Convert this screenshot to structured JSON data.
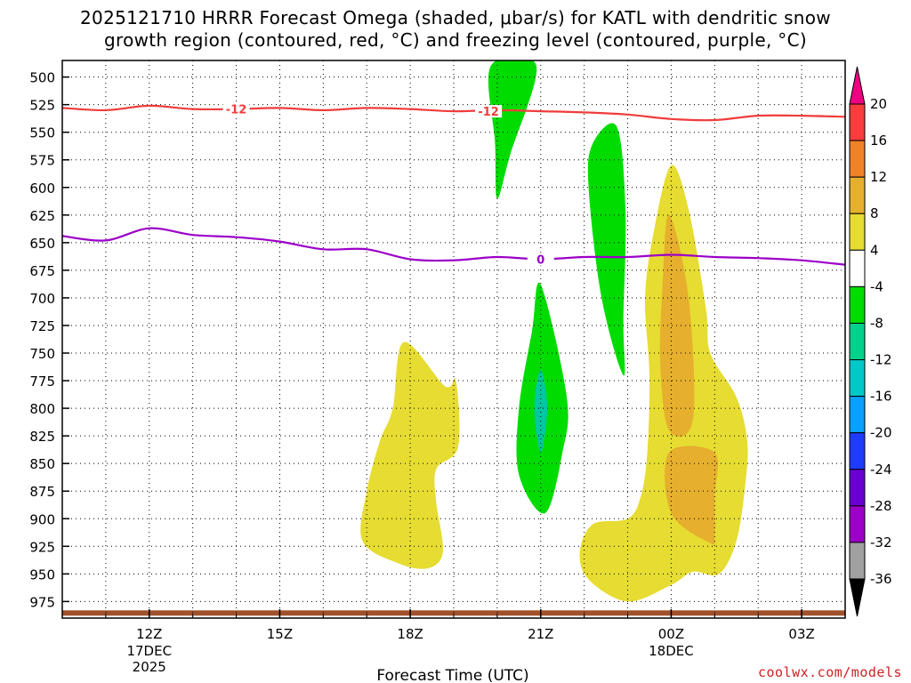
{
  "chart_data": {
    "type": "heatmap",
    "title_line1": "2025121710 HRRR Forecast Omega (shaded, μbar/s) for KATL with dendritic snow",
    "title_line2": "growth region (contoured, red, °C) and freezing level (contoured, purple, °C)",
    "xlabel": "Forecast Time (UTC)",
    "x_ticks": [
      "12Z",
      "15Z",
      "18Z",
      "21Z",
      "00Z",
      "03Z"
    ],
    "x_tick_hours": [
      12,
      15,
      18,
      21,
      24,
      27
    ],
    "x_sublabels": [
      {
        "at": "12Z",
        "lines": [
          "17DEC",
          "2025"
        ]
      },
      {
        "at": "00Z",
        "lines": [
          "18DEC"
        ]
      }
    ],
    "xlim_hours": [
      10,
      28
    ],
    "y_ticks": [
      500,
      525,
      550,
      575,
      600,
      625,
      650,
      675,
      700,
      725,
      750,
      775,
      800,
      825,
      850,
      875,
      900,
      925,
      950,
      975
    ],
    "ylim_mb": [
      485,
      990
    ],
    "grid": true,
    "colorbar": {
      "levels": [
        -36,
        -32,
        -28,
        -24,
        -20,
        -16,
        -12,
        -8,
        -4,
        4,
        8,
        12,
        16,
        20
      ],
      "colors": [
        "#000000",
        "#a0a0a0",
        "#9c00c8",
        "#6a00d2",
        "#1e3cff",
        "#0aa0ff",
        "#00c8c8",
        "#00d28c",
        "#00dc00",
        "#ffffff",
        "#e6dc32",
        "#e6af2d",
        "#f08228",
        "#fa3c3c",
        "#f00082"
      ]
    },
    "dgz_contour": {
      "label": "-12",
      "color": "#f03c3c",
      "points": [
        [
          10.0,
          528
        ],
        [
          11.0,
          530
        ],
        [
          12.0,
          526
        ],
        [
          13.0,
          529
        ],
        [
          14.0,
          529
        ],
        [
          15.0,
          528
        ],
        [
          16.0,
          530
        ],
        [
          17.0,
          528
        ],
        [
          18.0,
          529
        ],
        [
          19.0,
          531
        ],
        [
          20.0,
          530
        ],
        [
          21.0,
          531
        ],
        [
          22.0,
          532
        ],
        [
          23.0,
          534
        ],
        [
          24.0,
          538
        ],
        [
          25.0,
          539
        ],
        [
          26.0,
          535
        ],
        [
          27.0,
          535
        ],
        [
          28.0,
          536
        ]
      ]
    },
    "freezing_contour": {
      "label": "0",
      "color": "#9c00c8",
      "points": [
        [
          10.0,
          644
        ],
        [
          11.0,
          648
        ],
        [
          12.0,
          637
        ],
        [
          13.0,
          643
        ],
        [
          14.0,
          645
        ],
        [
          15.0,
          649
        ],
        [
          16.0,
          656
        ],
        [
          17.0,
          656
        ],
        [
          18.0,
          665
        ],
        [
          19.0,
          666
        ],
        [
          20.0,
          663
        ],
        [
          21.0,
          665
        ],
        [
          22.0,
          663
        ],
        [
          23.0,
          663
        ],
        [
          24.0,
          661
        ],
        [
          25.0,
          663
        ],
        [
          26.0,
          664
        ],
        [
          27.0,
          666
        ],
        [
          28.0,
          670
        ]
      ]
    },
    "shaded_regions": [
      {
        "category": "-8 to -4",
        "color": "#00dc00",
        "points": [
          [
            19.85,
            490
          ],
          [
            20.9,
            490
          ],
          [
            20.3,
            570
          ],
          [
            20.0,
            610
          ],
          [
            19.95,
            560
          ]
        ]
      },
      {
        "category": "-8 to -4",
        "color": "#00dc00",
        "points": [
          [
            21.0,
            688
          ],
          [
            21.6,
            790
          ],
          [
            21.5,
            840
          ],
          [
            21.1,
            895
          ],
          [
            20.5,
            860
          ],
          [
            20.5,
            800
          ],
          [
            20.8,
            730
          ]
        ]
      },
      {
        "category": "-12 to -8",
        "color": "#00c8a0",
        "points": [
          [
            21.0,
            765
          ],
          [
            21.15,
            800
          ],
          [
            21.0,
            840
          ],
          [
            20.85,
            800
          ]
        ]
      },
      {
        "category": "-8 to -4",
        "color": "#00dc00",
        "points": [
          [
            22.2,
            560
          ],
          [
            22.75,
            545
          ],
          [
            22.95,
            620
          ],
          [
            22.9,
            720
          ],
          [
            22.9,
            770
          ],
          [
            22.4,
            700
          ],
          [
            22.1,
            600
          ]
        ]
      },
      {
        "category": "4 to 8",
        "color": "#e6dc32",
        "points": [
          [
            17.85,
            740
          ],
          [
            18.8,
            780
          ],
          [
            19.05,
            775
          ],
          [
            19.1,
            835
          ],
          [
            18.6,
            855
          ],
          [
            18.6,
            885
          ],
          [
            18.75,
            930
          ],
          [
            18.4,
            945
          ],
          [
            17.7,
            940
          ],
          [
            16.9,
            920
          ],
          [
            17.0,
            875
          ],
          [
            17.3,
            830
          ],
          [
            17.6,
            800
          ]
        ]
      },
      {
        "category": "4 to 8",
        "color": "#e6dc32",
        "points": [
          [
            24.0,
            580
          ],
          [
            24.4,
            620
          ],
          [
            24.8,
            710
          ],
          [
            24.9,
            750
          ],
          [
            25.5,
            790
          ],
          [
            25.75,
            830
          ],
          [
            25.7,
            870
          ],
          [
            25.5,
            920
          ],
          [
            25.1,
            950
          ],
          [
            24.5,
            948
          ],
          [
            24.0,
            960
          ],
          [
            23.0,
            975
          ],
          [
            22.1,
            955
          ],
          [
            21.9,
            930
          ],
          [
            22.2,
            905
          ],
          [
            23.0,
            900
          ],
          [
            23.3,
            880
          ],
          [
            23.45,
            840
          ],
          [
            23.5,
            770
          ],
          [
            23.4,
            700
          ],
          [
            23.6,
            640
          ]
        ]
      },
      {
        "category": "8 to 12",
        "color": "#e6af2d",
        "points": [
          [
            23.95,
            625
          ],
          [
            24.4,
            700
          ],
          [
            24.5,
            810
          ],
          [
            23.95,
            820
          ],
          [
            23.75,
            760
          ],
          [
            23.8,
            690
          ]
        ]
      },
      {
        "category": "8 to 12",
        "color": "#e6af2d",
        "points": [
          [
            23.95,
            840
          ],
          [
            25.0,
            840
          ],
          [
            25.0,
            880
          ],
          [
            25.0,
            915
          ],
          [
            24.9,
            922
          ],
          [
            24.0,
            895
          ]
        ]
      }
    ],
    "surface_color": "#a0522d"
  },
  "credit": "coolwx.com/models"
}
